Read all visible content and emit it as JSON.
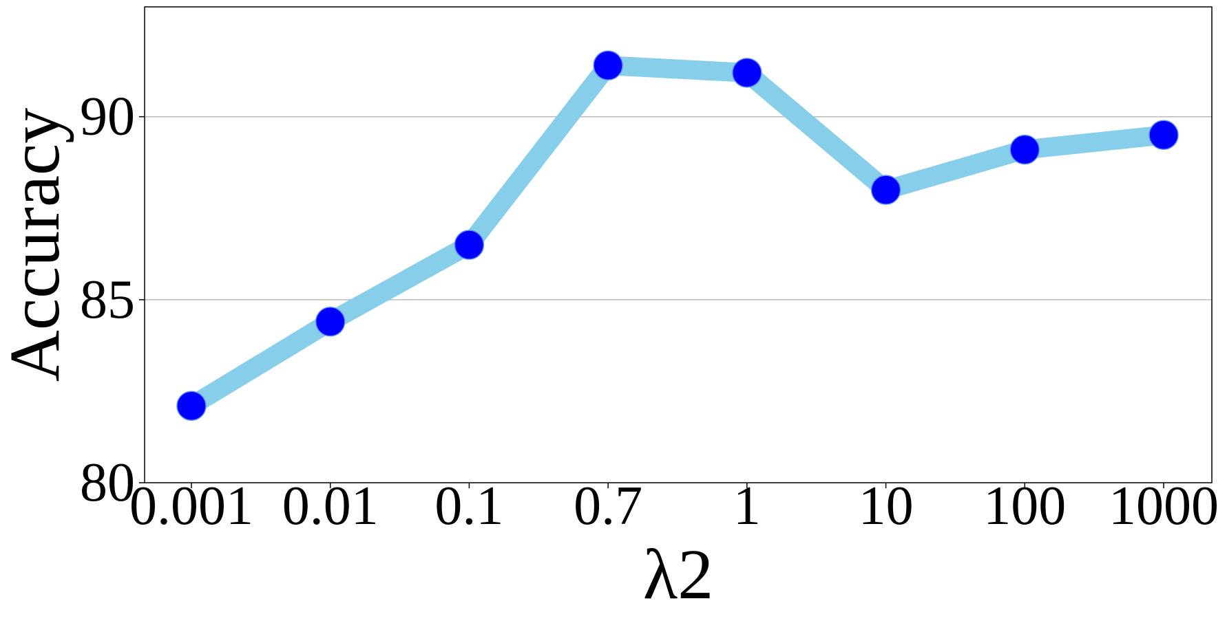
{
  "chart_data": {
    "type": "line",
    "categories": [
      "0.001",
      "0.01",
      "0.1",
      "0.7",
      "1",
      "10",
      "100",
      "1000"
    ],
    "series": [
      {
        "values": [
          82.1,
          84.4,
          86.5,
          91.4,
          91.2,
          88.0,
          89.1,
          89.5
        ]
      }
    ],
    "xlabel": "λ2",
    "ylabel": "Accuracy",
    "ylim": [
      80,
      93
    ],
    "yticks": [
      80,
      85,
      90
    ],
    "grid": "horizontal",
    "colors": {
      "line": "#87ceeb",
      "marker": "#0000ff",
      "grid": "#bbbbbb",
      "axis": "#000000"
    }
  }
}
